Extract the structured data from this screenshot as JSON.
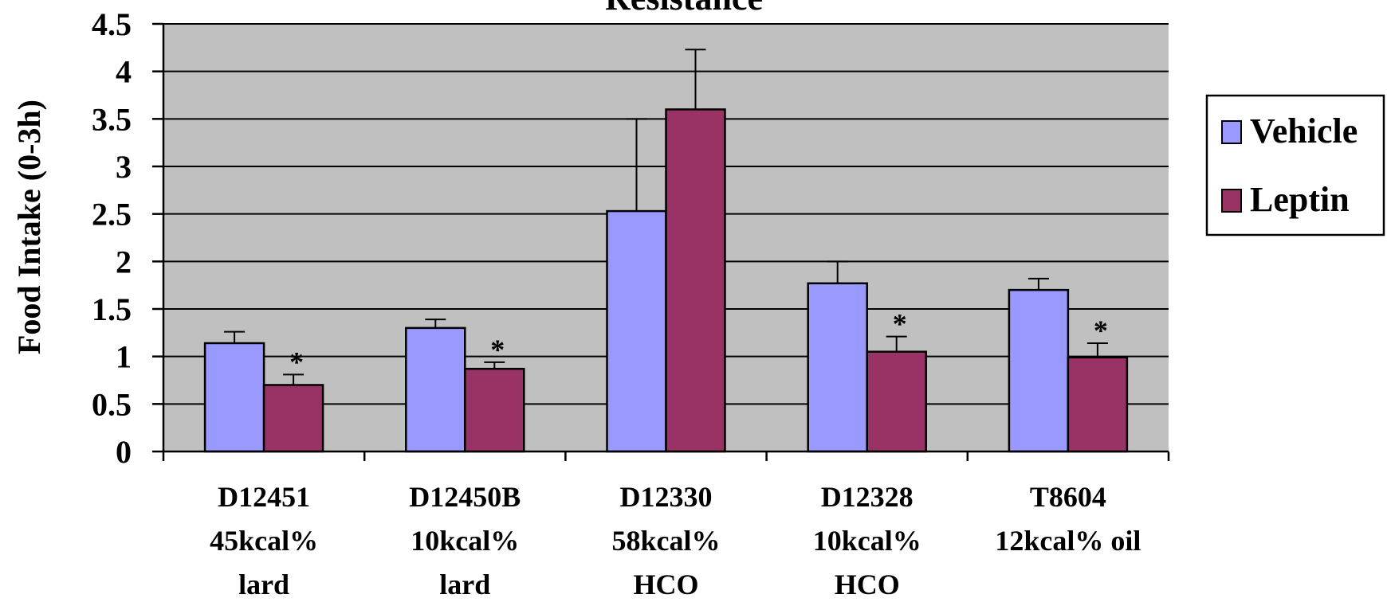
{
  "chart_data": {
    "type": "bar",
    "title": "Resistance",
    "ylabel": "Food Intake (0-3h)",
    "xlabel": "",
    "ylim": [
      0,
      4.5
    ],
    "yticks": [
      0,
      0.5,
      1,
      1.5,
      2,
      2.5,
      3,
      3.5,
      4,
      4.5
    ],
    "ytick_labels": [
      "0",
      "0.5",
      "1",
      "1.5",
      "2",
      "2.5",
      "3",
      "3.5",
      "4",
      "4.5"
    ],
    "grid": true,
    "legend_position": "right",
    "categories": [
      [
        "D12451",
        "45kcal%",
        "lard"
      ],
      [
        "D12450B",
        "10kcal%",
        "lard"
      ],
      [
        "D12330",
        "58kcal%",
        "HCO"
      ],
      [
        "D12328",
        "10kcal%",
        "HCO"
      ],
      [
        "T8604",
        "12kcal% oil"
      ]
    ],
    "series": [
      {
        "name": "Vehicle",
        "color": "#9999ff",
        "values": [
          1.14,
          1.3,
          2.53,
          1.77,
          1.7
        ],
        "errors": [
          0.12,
          0.09,
          0.97,
          0.23,
          0.12
        ],
        "significance": [
          "",
          "",
          "",
          "",
          ""
        ]
      },
      {
        "name": "Leptin",
        "color": "#993366",
        "values": [
          0.7,
          0.87,
          3.6,
          1.05,
          0.99
        ],
        "errors": [
          0.11,
          0.07,
          0.63,
          0.16,
          0.15
        ],
        "significance": [
          "*",
          "*",
          "",
          "*",
          "*"
        ]
      }
    ]
  },
  "style": {
    "plot_background": "#c0c0c0",
    "gridline_color": "#000000"
  }
}
